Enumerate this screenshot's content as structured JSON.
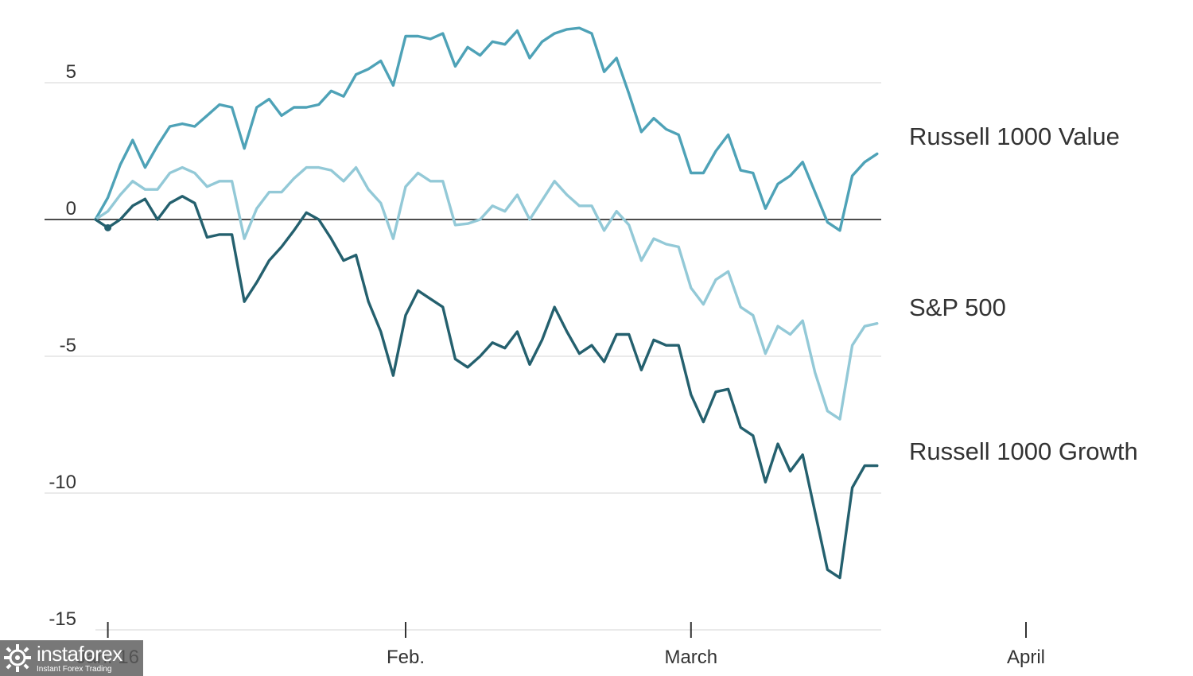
{
  "chart_data": {
    "type": "line",
    "title": "",
    "xlabel": "",
    "ylabel": "",
    "ylim": [
      -15,
      7
    ],
    "yticks": [
      5,
      0,
      -5,
      -10,
      -15
    ],
    "ytick_labels": [
      "5",
      "0",
      "-5",
      "-10",
      "-15"
    ],
    "xticks": [
      {
        "x": 1,
        "label": "Jan. 16"
      },
      {
        "x": 25,
        "label": "Feb."
      },
      {
        "x": 48,
        "label": "March"
      },
      {
        "x": 75,
        "label": "April"
      }
    ],
    "grid": true,
    "legend": "direct labels at right",
    "series": [
      {
        "name": "Russell 1000 Value",
        "color": "#4ea2b7",
        "values": [
          0.0,
          0.8,
          2.0,
          2.9,
          1.9,
          2.7,
          3.4,
          3.5,
          3.4,
          3.8,
          4.2,
          4.1,
          2.6,
          4.1,
          4.4,
          3.8,
          4.1,
          4.1,
          4.2,
          4.7,
          4.5,
          5.3,
          5.5,
          5.8,
          4.9,
          6.7,
          6.7,
          6.6,
          6.8,
          5.6,
          6.3,
          6.0,
          6.5,
          6.4,
          6.9,
          5.9,
          6.5,
          6.8,
          6.95,
          7.0,
          6.8,
          5.4,
          5.9,
          4.6,
          3.2,
          3.7,
          3.3,
          3.1,
          1.7,
          1.7,
          2.5,
          3.1,
          1.8,
          1.7,
          0.4,
          1.3,
          1.6,
          2.1,
          1.0,
          -0.1,
          -0.4,
          1.6,
          2.1,
          2.4
        ]
      },
      {
        "name": "S&P 500",
        "color": "#93c9d7",
        "values": [
          0.0,
          0.3,
          0.9,
          1.4,
          1.1,
          1.1,
          1.7,
          1.9,
          1.7,
          1.2,
          1.4,
          1.4,
          -0.7,
          0.4,
          1.0,
          1.0,
          1.5,
          1.9,
          1.9,
          1.8,
          1.4,
          1.9,
          1.1,
          0.6,
          -0.7,
          1.2,
          1.7,
          1.4,
          1.4,
          -0.2,
          -0.15,
          0.0,
          0.5,
          0.3,
          0.9,
          0.0,
          0.7,
          1.4,
          0.9,
          0.5,
          0.5,
          -0.4,
          0.3,
          -0.2,
          -1.5,
          -0.7,
          -0.9,
          -1.0,
          -2.5,
          -3.1,
          -2.2,
          -1.9,
          -3.2,
          -3.5,
          -4.9,
          -3.9,
          -4.2,
          -3.7,
          -5.6,
          -7.0,
          -7.3,
          -4.6,
          -3.9,
          -3.8
        ]
      },
      {
        "name": "Russell 1000 Growth",
        "color": "#24606e",
        "values": [
          0.0,
          -0.3,
          0.0,
          0.5,
          0.75,
          0.0,
          0.6,
          0.85,
          0.6,
          -0.65,
          -0.55,
          -0.55,
          -3.0,
          -2.3,
          -1.5,
          -1.0,
          -0.4,
          0.25,
          0.0,
          -0.7,
          -1.5,
          -1.3,
          -3.0,
          -4.1,
          -5.7,
          -3.5,
          -2.6,
          -2.9,
          -3.2,
          -5.1,
          -5.4,
          -5.0,
          -4.5,
          -4.7,
          -4.1,
          -5.3,
          -4.4,
          -3.2,
          -4.1,
          -4.9,
          -4.6,
          -5.2,
          -4.2,
          -4.2,
          -5.5,
          -4.4,
          -4.6,
          -4.6,
          -6.4,
          -7.4,
          -6.3,
          -6.2,
          -7.6,
          -7.9,
          -9.6,
          -8.2,
          -9.2,
          -8.6,
          -10.7,
          -12.8,
          -13.1,
          -9.8,
          -9.0,
          -9.0
        ]
      }
    ]
  },
  "watermark": {
    "brand": "instaforex",
    "tagline": "Instant Forex Trading"
  }
}
